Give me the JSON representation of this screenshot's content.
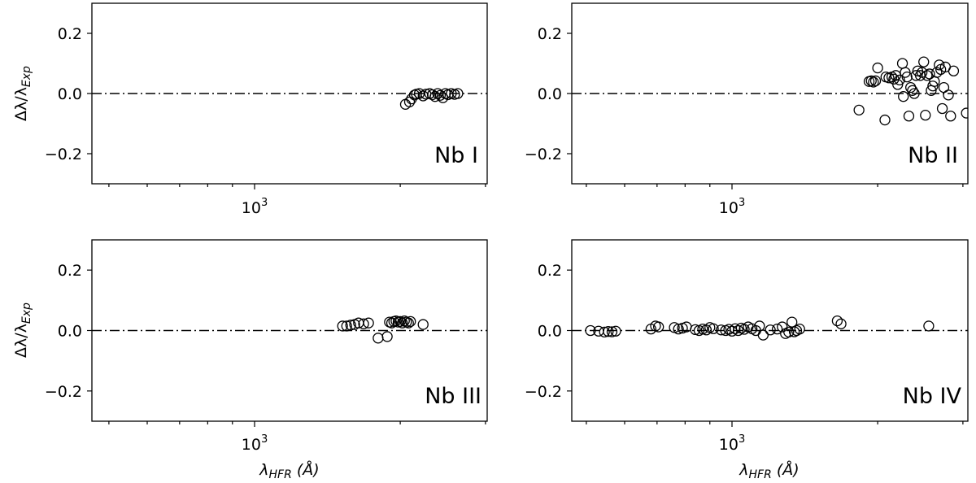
{
  "chart_data": [
    {
      "type": "scatter",
      "label": "Nb I",
      "xscale": "log",
      "ylim": [
        -0.3,
        0.3
      ],
      "yticks": [
        0.2,
        0.0,
        -0.2
      ],
      "ytick_labels": [
        "0.2",
        "0.0",
        "−0.2"
      ],
      "xtick_major": 1000,
      "xtick_base": "10",
      "xtick_exp": "3",
      "ylabel": "Δλ/λ",
      "ylabel_sub": "Exp",
      "xlabel": "",
      "reference_line": 0,
      "points": [
        {
          "x": 2050,
          "y": -0.036
        },
        {
          "x": 2090,
          "y": -0.028
        },
        {
          "x": 2110,
          "y": -0.018
        },
        {
          "x": 2140,
          "y": -0.005
        },
        {
          "x": 2160,
          "y": -0.002
        },
        {
          "x": 2190,
          "y": 0.0
        },
        {
          "x": 2230,
          "y": -0.008
        },
        {
          "x": 2260,
          "y": -0.002
        },
        {
          "x": 2300,
          "y": 0.0
        },
        {
          "x": 2330,
          "y": -0.004
        },
        {
          "x": 2360,
          "y": -0.01
        },
        {
          "x": 2390,
          "y": 0.0
        },
        {
          "x": 2420,
          "y": -0.006
        },
        {
          "x": 2450,
          "y": -0.014
        },
        {
          "x": 2480,
          "y": 0.0
        },
        {
          "x": 2510,
          "y": -0.004
        },
        {
          "x": 2550,
          "y": 0.0
        },
        {
          "x": 2590,
          "y": -0.003
        },
        {
          "x": 2630,
          "y": 0.0
        },
        {
          "x": 3220,
          "y": -0.002
        },
        {
          "x": 3240,
          "y": -0.01
        },
        {
          "x": 3260,
          "y": -0.016
        },
        {
          "x": 3280,
          "y": 0.0
        }
      ]
    },
    {
      "type": "scatter",
      "label": "Nb II",
      "xscale": "log",
      "ylim": [
        -0.3,
        0.3
      ],
      "yticks": [
        0.2,
        0.0,
        -0.2
      ],
      "ytick_labels": [
        "0.2",
        "0.0",
        "−0.2"
      ],
      "xtick_major": 1000,
      "xtick_base": "10",
      "xtick_exp": "3",
      "ylabel": "",
      "ylabel_sub": "",
      "xlabel": "",
      "reference_line": 0,
      "points": [
        {
          "x": 1830,
          "y": -0.055
        },
        {
          "x": 1920,
          "y": 0.04
        },
        {
          "x": 1940,
          "y": 0.042
        },
        {
          "x": 1960,
          "y": 0.038
        },
        {
          "x": 1980,
          "y": 0.042
        },
        {
          "x": 2000,
          "y": 0.085
        },
        {
          "x": 2070,
          "y": -0.088
        },
        {
          "x": 2080,
          "y": 0.055
        },
        {
          "x": 2110,
          "y": 0.052
        },
        {
          "x": 2140,
          "y": 0.055
        },
        {
          "x": 2160,
          "y": 0.048
        },
        {
          "x": 2180,
          "y": 0.06
        },
        {
          "x": 2200,
          "y": 0.03
        },
        {
          "x": 2220,
          "y": 0.045
        },
        {
          "x": 2250,
          "y": 0.1
        },
        {
          "x": 2260,
          "y": -0.01
        },
        {
          "x": 2280,
          "y": 0.07
        },
        {
          "x": 2300,
          "y": 0.055
        },
        {
          "x": 2320,
          "y": -0.075
        },
        {
          "x": 2340,
          "y": 0.02
        },
        {
          "x": 2360,
          "y": 0.01
        },
        {
          "x": 2380,
          "y": 0.0
        },
        {
          "x": 2400,
          "y": 0.06
        },
        {
          "x": 2420,
          "y": 0.075
        },
        {
          "x": 2450,
          "y": 0.06
        },
        {
          "x": 2470,
          "y": 0.07
        },
        {
          "x": 2490,
          "y": 0.105
        },
        {
          "x": 2510,
          "y": -0.072
        },
        {
          "x": 2530,
          "y": 0.06
        },
        {
          "x": 2560,
          "y": 0.065
        },
        {
          "x": 2580,
          "y": 0.01
        },
        {
          "x": 2600,
          "y": 0.025
        },
        {
          "x": 2620,
          "y": 0.04
        },
        {
          "x": 2650,
          "y": 0.07
        },
        {
          "x": 2680,
          "y": 0.095
        },
        {
          "x": 2700,
          "y": 0.08
        },
        {
          "x": 2720,
          "y": -0.05
        },
        {
          "x": 2740,
          "y": 0.02
        },
        {
          "x": 2760,
          "y": 0.088
        },
        {
          "x": 2800,
          "y": -0.005
        },
        {
          "x": 2830,
          "y": -0.075
        },
        {
          "x": 2870,
          "y": 0.075
        },
        {
          "x": 3050,
          "y": -0.065
        },
        {
          "x": 3350,
          "y": 0.02
        }
      ]
    },
    {
      "type": "scatter",
      "label": "Nb III",
      "xscale": "log",
      "ylim": [
        -0.3,
        0.3
      ],
      "yticks": [
        0.2,
        0.0,
        -0.2
      ],
      "ytick_labels": [
        "0.2",
        "0.0",
        "−0.2"
      ],
      "xtick_major": 1000,
      "xtick_base": "10",
      "xtick_exp": "3",
      "ylabel": "Δλ/λ",
      "ylabel_sub": "Exp",
      "xlabel": "λ",
      "xlabel_sub": "HFR",
      "xlabel_unit": " (Å)",
      "reference_line": 0,
      "points": [
        {
          "x": 1520,
          "y": 0.015
        },
        {
          "x": 1550,
          "y": 0.015
        },
        {
          "x": 1580,
          "y": 0.018
        },
        {
          "x": 1610,
          "y": 0.02
        },
        {
          "x": 1640,
          "y": 0.025
        },
        {
          "x": 1680,
          "y": 0.022
        },
        {
          "x": 1720,
          "y": 0.025
        },
        {
          "x": 1800,
          "y": -0.025
        },
        {
          "x": 1880,
          "y": -0.02
        },
        {
          "x": 1900,
          "y": 0.028
        },
        {
          "x": 1920,
          "y": 0.025
        },
        {
          "x": 1940,
          "y": 0.03
        },
        {
          "x": 1960,
          "y": 0.032
        },
        {
          "x": 1980,
          "y": 0.028
        },
        {
          "x": 2000,
          "y": 0.03
        },
        {
          "x": 2020,
          "y": 0.025
        },
        {
          "x": 2040,
          "y": 0.032
        },
        {
          "x": 2060,
          "y": 0.028
        },
        {
          "x": 2080,
          "y": 0.025
        },
        {
          "x": 2100,
          "y": 0.03
        },
        {
          "x": 2230,
          "y": 0.02
        }
      ]
    },
    {
      "type": "scatter",
      "label": "Nb IV",
      "xscale": "log",
      "ylim": [
        -0.3,
        0.3
      ],
      "yticks": [
        0.2,
        0.0,
        -0.2
      ],
      "ytick_labels": [
        "0.2",
        "0.0",
        "−0.2"
      ],
      "xtick_major": 1000,
      "xtick_base": "10",
      "xtick_exp": "3",
      "ylabel": "",
      "ylabel_sub": "",
      "xlabel": "λ",
      "xlabel_sub": "HFR",
      "xlabel_unit": " (Å)",
      "reference_line": 0,
      "points": [
        {
          "x": 510,
          "y": 0.0
        },
        {
          "x": 530,
          "y": -0.002
        },
        {
          "x": 545,
          "y": -0.005
        },
        {
          "x": 555,
          "y": -0.003
        },
        {
          "x": 565,
          "y": -0.004
        },
        {
          "x": 575,
          "y": -0.002
        },
        {
          "x": 680,
          "y": 0.005
        },
        {
          "x": 695,
          "y": 0.015
        },
        {
          "x": 705,
          "y": 0.012
        },
        {
          "x": 760,
          "y": 0.01
        },
        {
          "x": 775,
          "y": 0.005
        },
        {
          "x": 790,
          "y": 0.008
        },
        {
          "x": 805,
          "y": 0.012
        },
        {
          "x": 840,
          "y": 0.003
        },
        {
          "x": 855,
          "y": 0.0
        },
        {
          "x": 870,
          "y": 0.005
        },
        {
          "x": 885,
          "y": 0.002
        },
        {
          "x": 900,
          "y": 0.01
        },
        {
          "x": 915,
          "y": 0.006
        },
        {
          "x": 950,
          "y": 0.002
        },
        {
          "x": 970,
          "y": 0.0
        },
        {
          "x": 985,
          "y": 0.004
        },
        {
          "x": 1000,
          "y": -0.002
        },
        {
          "x": 1015,
          "y": 0.006
        },
        {
          "x": 1030,
          "y": 0.0
        },
        {
          "x": 1045,
          "y": 0.008
        },
        {
          "x": 1060,
          "y": 0.004
        },
        {
          "x": 1080,
          "y": 0.012
        },
        {
          "x": 1100,
          "y": 0.006
        },
        {
          "x": 1120,
          "y": 0.0
        },
        {
          "x": 1140,
          "y": 0.015
        },
        {
          "x": 1160,
          "y": -0.015
        },
        {
          "x": 1200,
          "y": 0.002
        },
        {
          "x": 1240,
          "y": 0.005
        },
        {
          "x": 1270,
          "y": 0.012
        },
        {
          "x": 1290,
          "y": -0.01
        },
        {
          "x": 1310,
          "y": -0.005
        },
        {
          "x": 1330,
          "y": 0.028
        },
        {
          "x": 1345,
          "y": -0.004
        },
        {
          "x": 1360,
          "y": 0.0
        },
        {
          "x": 1380,
          "y": 0.005
        },
        {
          "x": 1650,
          "y": 0.032
        },
        {
          "x": 1680,
          "y": 0.022
        },
        {
          "x": 2550,
          "y": 0.015
        }
      ]
    }
  ]
}
